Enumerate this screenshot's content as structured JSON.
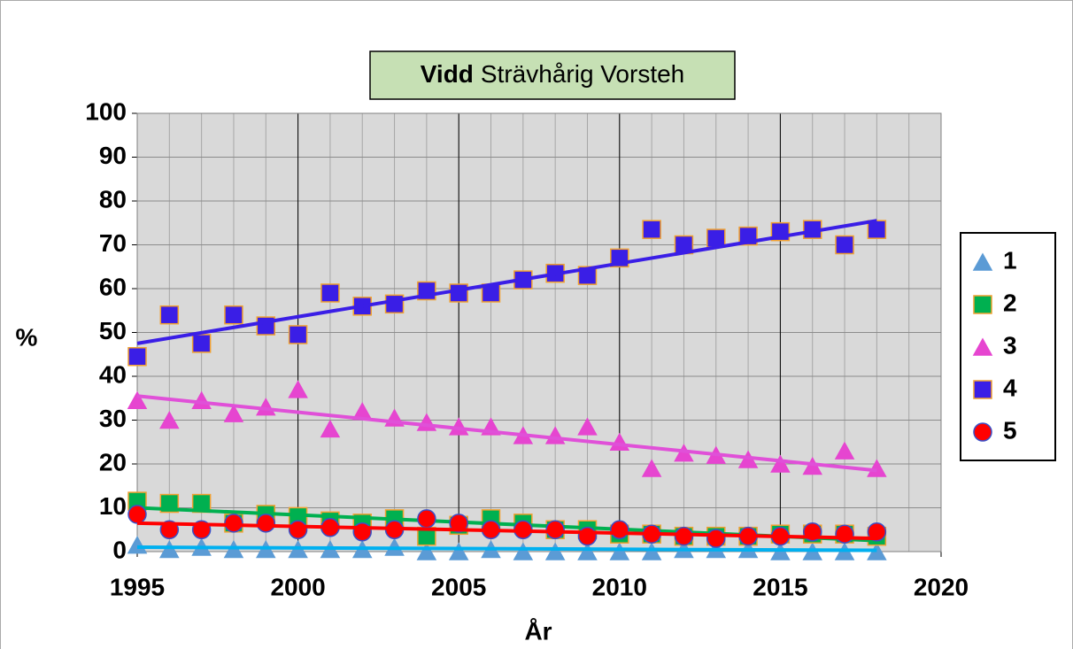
{
  "chart_data": {
    "type": "scatter",
    "title_prefix": "Vidd",
    "title": "Strävhårig Vorsteh",
    "xlabel": "År",
    "ylabel": "%",
    "x": [
      1995,
      1996,
      1997,
      1998,
      1999,
      2000,
      2001,
      2002,
      2003,
      2004,
      2005,
      2006,
      2007,
      2008,
      2009,
      2010,
      2011,
      2012,
      2013,
      2014,
      2015,
      2016,
      2017,
      2018
    ],
    "series": [
      {
        "name": "1",
        "marker": "triangle",
        "color": "#5b9bd5",
        "edge": "#5b9bd5",
        "trend_color": "#00b0f0",
        "values": [
          1.5,
          0.5,
          1,
          0.5,
          0.5,
          0.5,
          0.5,
          0.5,
          1,
          0,
          0,
          0.5,
          0,
          0,
          0,
          0,
          0,
          0.5,
          0.5,
          0.5,
          0,
          0,
          0,
          0
        ],
        "trend": [
          1,
          0.3
        ]
      },
      {
        "name": "2",
        "marker": "square",
        "color": "#00b050",
        "edge": "#f0a030",
        "trend_color": "#00b050",
        "values": [
          11.5,
          11,
          11,
          6.5,
          8.5,
          8,
          7,
          6.5,
          7.5,
          3.5,
          6,
          7.5,
          6.5,
          5,
          5,
          4,
          4,
          3.5,
          3.5,
          3.5,
          4,
          4,
          4,
          3.5
        ],
        "trend": [
          10,
          2.5
        ]
      },
      {
        "name": "3",
        "marker": "triangle",
        "color": "#e645d0",
        "edge": "#e645d0",
        "trend_color": "#e050d8",
        "values": [
          34.5,
          30,
          34.5,
          31.5,
          33,
          37,
          28,
          32,
          30.5,
          29.5,
          28.5,
          28.5,
          26.5,
          26.5,
          28.5,
          25,
          19,
          22.5,
          22,
          21,
          20,
          19.5,
          23,
          19
        ],
        "trend": [
          35.5,
          18.5
        ]
      },
      {
        "name": "4",
        "marker": "square",
        "color": "#3a1ee6",
        "edge": "#f0a030",
        "trend_color": "#3a1ee6",
        "values": [
          44.5,
          54,
          47.5,
          54,
          51.5,
          49.5,
          59,
          56,
          56.5,
          59.5,
          59,
          59,
          62,
          63.5,
          63,
          67,
          73.5,
          70,
          71.5,
          72,
          73,
          73.5,
          70,
          73.5
        ],
        "trend": [
          47.5,
          75.5
        ]
      },
      {
        "name": "5",
        "marker": "circle",
        "color": "#ff0000",
        "edge": "#3a50c8",
        "trend_color": "#ff0000",
        "values": [
          8.5,
          5,
          5,
          6.5,
          6.5,
          5,
          5.5,
          4.5,
          5,
          7.5,
          6.5,
          5,
          5,
          5,
          3.5,
          5,
          4,
          3.5,
          3,
          3.5,
          3.5,
          4.5,
          4,
          4.5
        ],
        "trend": [
          6.5,
          3
        ]
      }
    ],
    "xlim": [
      1995,
      2020
    ],
    "xticks": [
      1995,
      2000,
      2005,
      2010,
      2015,
      2020
    ],
    "xgrid_minor_step": 1,
    "ylim": [
      0,
      100
    ],
    "yticks": [
      0,
      10,
      20,
      30,
      40,
      50,
      60,
      70,
      80,
      90,
      100
    ],
    "grid": true,
    "legend": "right"
  }
}
